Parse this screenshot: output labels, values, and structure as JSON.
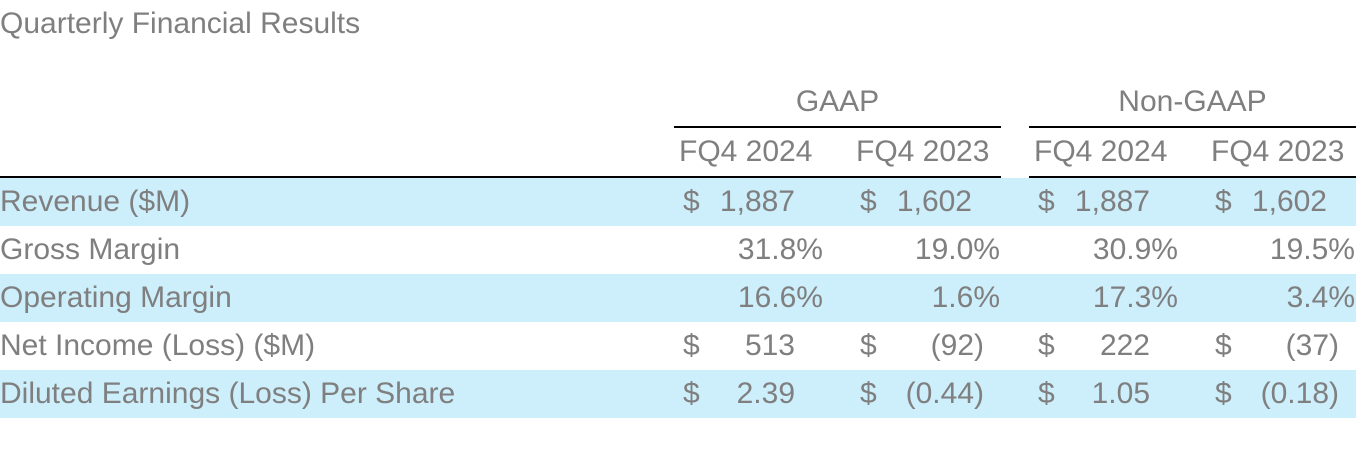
{
  "title": "Quarterly Financial Results",
  "groups": [
    "GAAP",
    "Non-GAAP"
  ],
  "columns": [
    "FQ4 2024",
    "FQ4 2023",
    "FQ4 2024",
    "FQ4 2023"
  ],
  "rows": [
    {
      "label": "Revenue ($M)",
      "cells": [
        {
          "cur": "$",
          "val": "1,887"
        },
        {
          "cur": "$",
          "val": "1,602"
        },
        {
          "cur": "$",
          "val": "1,887"
        },
        {
          "cur": "$",
          "val": "1,602"
        }
      ]
    },
    {
      "label": "Gross Margin",
      "cells": [
        {
          "cur": "",
          "val": "31.8%"
        },
        {
          "cur": "",
          "val": "19.0%"
        },
        {
          "cur": "",
          "val": "30.9%"
        },
        {
          "cur": "",
          "val": "19.5%"
        }
      ]
    },
    {
      "label": "Operating Margin",
      "cells": [
        {
          "cur": "",
          "val": "16.6%"
        },
        {
          "cur": "",
          "val": "1.6%"
        },
        {
          "cur": "",
          "val": "17.3%"
        },
        {
          "cur": "",
          "val": "3.4%"
        }
      ]
    },
    {
      "label": "Net Income (Loss) ($M)",
      "cells": [
        {
          "cur": "$",
          "val": "513"
        },
        {
          "cur": "$",
          "val": "(92)"
        },
        {
          "cur": "$",
          "val": "222"
        },
        {
          "cur": "$",
          "val": "(37)"
        }
      ]
    },
    {
      "label": "Diluted Earnings (Loss) Per Share",
      "cells": [
        {
          "cur": "$",
          "val": "2.39"
        },
        {
          "cur": "$",
          "val": "(0.44)"
        },
        {
          "cur": "$",
          "val": "1.05"
        },
        {
          "cur": "$",
          "val": "(0.18)"
        }
      ]
    }
  ],
  "colors": {
    "text": "#7f7f7f",
    "shade": "#cdeefb",
    "rule": "#000000"
  }
}
